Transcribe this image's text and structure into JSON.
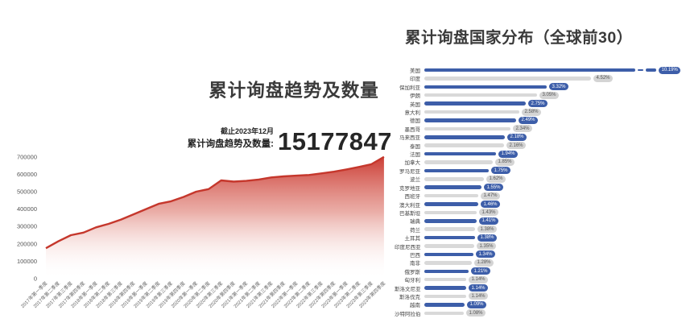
{
  "left_chart": {
    "title": "累计询盘趋势及数量",
    "stat_note": "截止2023年12月",
    "stat_label": "累计询盘趋势及数量:",
    "stat_value": "15177847"
  },
  "right_chart": {
    "title": "累计询盘国家分布（全球前30）"
  },
  "colors": {
    "area_line": "#c5372c",
    "area_fill_top": "#c9342b",
    "bar_blue": "#3d5ea9",
    "bar_gray": "#d9d9d9",
    "badge_gray_text": "#555555"
  },
  "chart_data": [
    {
      "type": "area",
      "title": "累计询盘趋势及数量",
      "annotation": {
        "note": "截止2023年12月",
        "label": "累计询盘趋势及数量:",
        "value": "15177847"
      },
      "xlabel": "",
      "ylabel": "",
      "ylim": [
        0,
        700000
      ],
      "yticks": [
        0,
        100000,
        200000,
        300000,
        400000,
        500000,
        600000,
        700000
      ],
      "grid": false,
      "categories": [
        "2017年第一季度",
        "2017年第二季度",
        "2017年第三季度",
        "2017年第四季度",
        "2018年第一季度",
        "2018年第二季度",
        "2018年第三季度",
        "2018年第四季度",
        "2019年第一季度",
        "2019年第二季度",
        "2019年第三季度",
        "2019年第四季度",
        "2020年第一季度",
        "2020年第二季度",
        "2020年第三季度",
        "2020年第四季度",
        "2021年第一季度",
        "2021年第二季度",
        "2021年第三季度",
        "2021年第四季度",
        "2022年第一季度",
        "2022年第二季度",
        "2022年第三季度",
        "2022年第四季度",
        "2023年第一季度",
        "2023年第二季度",
        "2023年第三季度",
        "2023年第四季度"
      ],
      "values": [
        175000,
        215000,
        250000,
        265000,
        295000,
        315000,
        340000,
        370000,
        400000,
        430000,
        445000,
        470000,
        500000,
        515000,
        565000,
        558000,
        562000,
        570000,
        582000,
        588000,
        592000,
        596000,
        605000,
        615000,
        628000,
        642000,
        658000,
        700000
      ]
    },
    {
      "type": "bar",
      "orientation": "horizontal",
      "title": "累计询盘国家分布（全球前30）",
      "legend": null,
      "grid": false,
      "axis_break_on_first_bar": true,
      "categories": [
        "美国",
        "印度",
        "保加利亚",
        "伊朗",
        "英国",
        "意大利",
        "德国",
        "墨西哥",
        "马来西亚",
        "泰国",
        "法国",
        "加拿大",
        "罗马尼亚",
        "波兰",
        "克罗地亚",
        "西班牙",
        "澳大利亚",
        "巴基斯坦",
        "瑞典",
        "荷兰",
        "土耳其",
        "印度尼西亚",
        "巴西",
        "南非",
        "俄罗斯",
        "匈牙利",
        "斯洛文尼亚",
        "斯洛伐克",
        "越南",
        "沙特阿拉伯"
      ],
      "values": [
        10.19,
        4.52,
        3.32,
        3.05,
        2.75,
        2.58,
        2.49,
        2.34,
        2.18,
        2.16,
        1.94,
        1.85,
        1.75,
        1.62,
        1.55,
        1.47,
        1.46,
        1.43,
        1.41,
        1.38,
        1.38,
        1.35,
        1.34,
        1.28,
        1.21,
        1.14,
        1.14,
        1.14,
        1.09,
        1.08
      ],
      "labels": [
        "10.19%",
        "4.52%",
        "3.32%",
        "3.05%",
        "2.75%",
        "2.58%",
        "2.49%",
        "2.34%",
        "2.18%",
        "2.16%",
        "1.94%",
        "1.85%",
        "1.75%",
        "1.62%",
        "1.55%",
        "1.47%",
        "1.46%",
        "1.43%",
        "1.41%",
        "1.38%",
        "1.38%",
        "1.35%",
        "1.34%",
        "1.28%",
        "1.21%",
        "1.14%",
        "1.14%",
        "1.14%",
        "1.09%",
        "1.08%"
      ]
    }
  ]
}
